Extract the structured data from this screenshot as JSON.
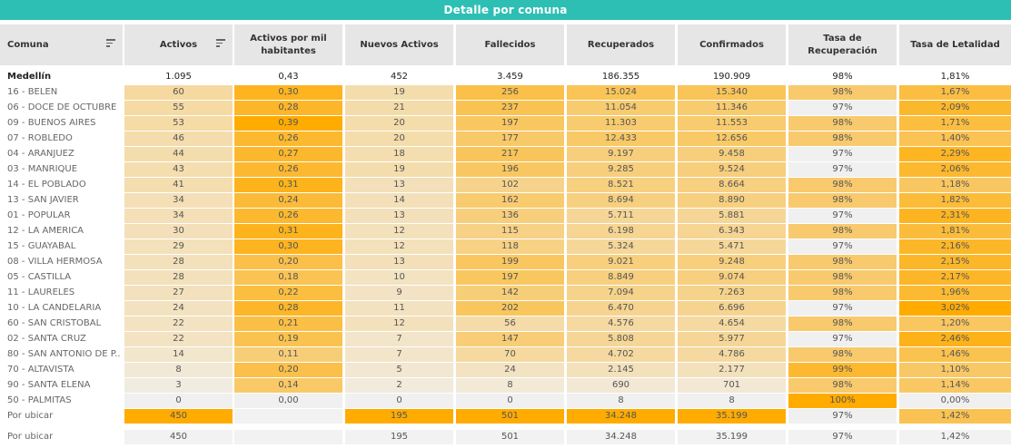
{
  "title": "Detalle por comuna",
  "columns": [
    "Comuna",
    "Activos",
    "Activos por mil habitantes",
    "Nuevos Activos",
    "Fallecidos",
    "Recuperados",
    "Confirmados",
    "Tasa de Recuperación",
    "Tasa de Letalidad"
  ],
  "sortable_columns": [
    "Comuna",
    "Activos"
  ],
  "total": {
    "name": "Medellín",
    "values": [
      "1.095",
      "0,43",
      "452",
      "3.459",
      "186.355",
      "190.909",
      "98%",
      "1,81%"
    ]
  },
  "rows": [
    {
      "name": "16 - BELEN",
      "values": [
        "60",
        "0,30",
        "19",
        "256",
        "15.024",
        "15.340",
        "98%",
        "1,67%"
      ]
    },
    {
      "name": "06 - DOCE DE OCTUBRE",
      "values": [
        "55",
        "0,28",
        "21",
        "237",
        "11.054",
        "11.346",
        "97%",
        "2,09%"
      ]
    },
    {
      "name": "09 - BUENOS AIRES",
      "values": [
        "53",
        "0,39",
        "20",
        "197",
        "11.303",
        "11.553",
        "98%",
        "1,71%"
      ]
    },
    {
      "name": "07 - ROBLEDO",
      "values": [
        "46",
        "0,26",
        "20",
        "177",
        "12.433",
        "12.656",
        "98%",
        "1,40%"
      ]
    },
    {
      "name": "04 - ARANJUEZ",
      "values": [
        "44",
        "0,27",
        "18",
        "217",
        "9.197",
        "9.458",
        "97%",
        "2,29%"
      ]
    },
    {
      "name": "03 - MANRIQUE",
      "values": [
        "43",
        "0,26",
        "19",
        "196",
        "9.285",
        "9.524",
        "97%",
        "2,06%"
      ]
    },
    {
      "name": "14 - EL POBLADO",
      "values": [
        "41",
        "0,31",
        "13",
        "102",
        "8.521",
        "8.664",
        "98%",
        "1,18%"
      ]
    },
    {
      "name": "13 - SAN JAVIER",
      "values": [
        "34",
        "0,24",
        "14",
        "162",
        "8.694",
        "8.890",
        "98%",
        "1,82%"
      ]
    },
    {
      "name": "01 - POPULAR",
      "values": [
        "34",
        "0,26",
        "13",
        "136",
        "5.711",
        "5.881",
        "97%",
        "2,31%"
      ]
    },
    {
      "name": "12 - LA AMERICA",
      "values": [
        "30",
        "0,31",
        "12",
        "115",
        "6.198",
        "6.343",
        "98%",
        "1,81%"
      ]
    },
    {
      "name": "15 - GUAYABAL",
      "values": [
        "29",
        "0,30",
        "12",
        "118",
        "5.324",
        "5.471",
        "97%",
        "2,16%"
      ]
    },
    {
      "name": "08 - VILLA HERMOSA",
      "values": [
        "28",
        "0,20",
        "13",
        "199",
        "9.021",
        "9.248",
        "98%",
        "2,15%"
      ]
    },
    {
      "name": "05 - CASTILLA",
      "values": [
        "28",
        "0,18",
        "10",
        "197",
        "8.849",
        "9.074",
        "98%",
        "2,17%"
      ]
    },
    {
      "name": "11 - LAURELES",
      "values": [
        "27",
        "0,22",
        "9",
        "142",
        "7.094",
        "7.263",
        "98%",
        "1,96%"
      ]
    },
    {
      "name": "10 - LA CANDELARIA",
      "values": [
        "24",
        "0,28",
        "11",
        "202",
        "6.470",
        "6.696",
        "97%",
        "3,02%"
      ]
    },
    {
      "name": "60 - SAN CRISTOBAL",
      "values": [
        "22",
        "0,21",
        "12",
        "56",
        "4.576",
        "4.654",
        "98%",
        "1,20%"
      ]
    },
    {
      "name": "02 - SANTA CRUZ",
      "values": [
        "22",
        "0,19",
        "7",
        "147",
        "5.808",
        "5.977",
        "97%",
        "2,46%"
      ]
    },
    {
      "name": "80 - SAN ANTONIO DE P..",
      "values": [
        "14",
        "0,11",
        "7",
        "70",
        "4.702",
        "4.786",
        "98%",
        "1,46%"
      ]
    },
    {
      "name": "70 - ALTAVISTA",
      "values": [
        "8",
        "0,20",
        "5",
        "24",
        "2.145",
        "2.177",
        "99%",
        "1,10%"
      ]
    },
    {
      "name": "90 - SANTA ELENA",
      "values": [
        "3",
        "0,14",
        "2",
        "8",
        "690",
        "701",
        "98%",
        "1,14%"
      ]
    },
    {
      "name": "50 - PALMITAS",
      "values": [
        "0",
        "0,00",
        "0",
        "0",
        "8",
        "8",
        "100%",
        "0,00%"
      ]
    },
    {
      "name": "Por ubicar",
      "values": [
        "450",
        "",
        "195",
        "501",
        "34.248",
        "35.199",
        "97%",
        "1,42%"
      ]
    }
  ],
  "footer": {
    "name": "Por ubicar",
    "values": [
      "450",
      "",
      "195",
      "501",
      "34.248",
      "35.199",
      "97%",
      "1,42%"
    ]
  },
  "colors": {
    "banner": "#2ebfb4",
    "header_bg": "#e6e6e6",
    "heat_low": "#f0f0f0",
    "heat_high": "#ffab00",
    "plain_cell": "#f2f2f2"
  }
}
